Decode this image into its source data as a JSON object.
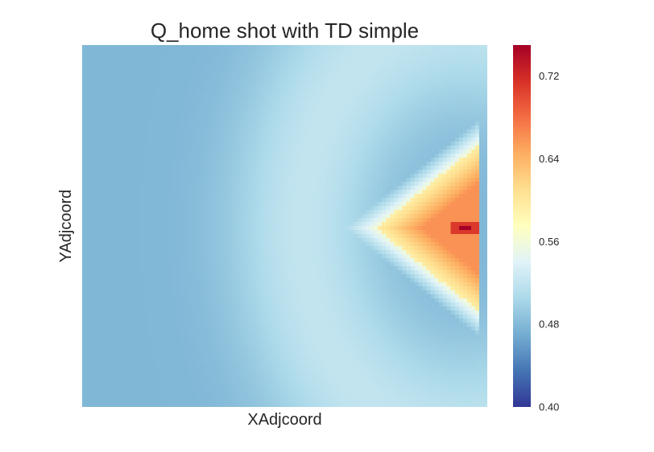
{
  "chart_data": {
    "type": "heatmap",
    "title": "Q_home shot with TD simple",
    "xlabel": "XAdjcoord",
    "ylabel": "YAdjcoord",
    "colormap": "RdYlBu_r",
    "colorbar": {
      "range": [
        0.4,
        0.75
      ],
      "ticks": [
        0.4,
        0.48,
        0.56,
        0.64,
        0.72
      ],
      "tick_labels": [
        "0.40",
        "0.48",
        "0.56",
        "0.64",
        "0.72"
      ]
    },
    "field": {
      "background_min": 0.455,
      "background_max": 0.52,
      "hotspot_value_min": 0.58,
      "hotspot_value_max": 0.66,
      "peak_value": 0.75
    },
    "grid": false
  }
}
